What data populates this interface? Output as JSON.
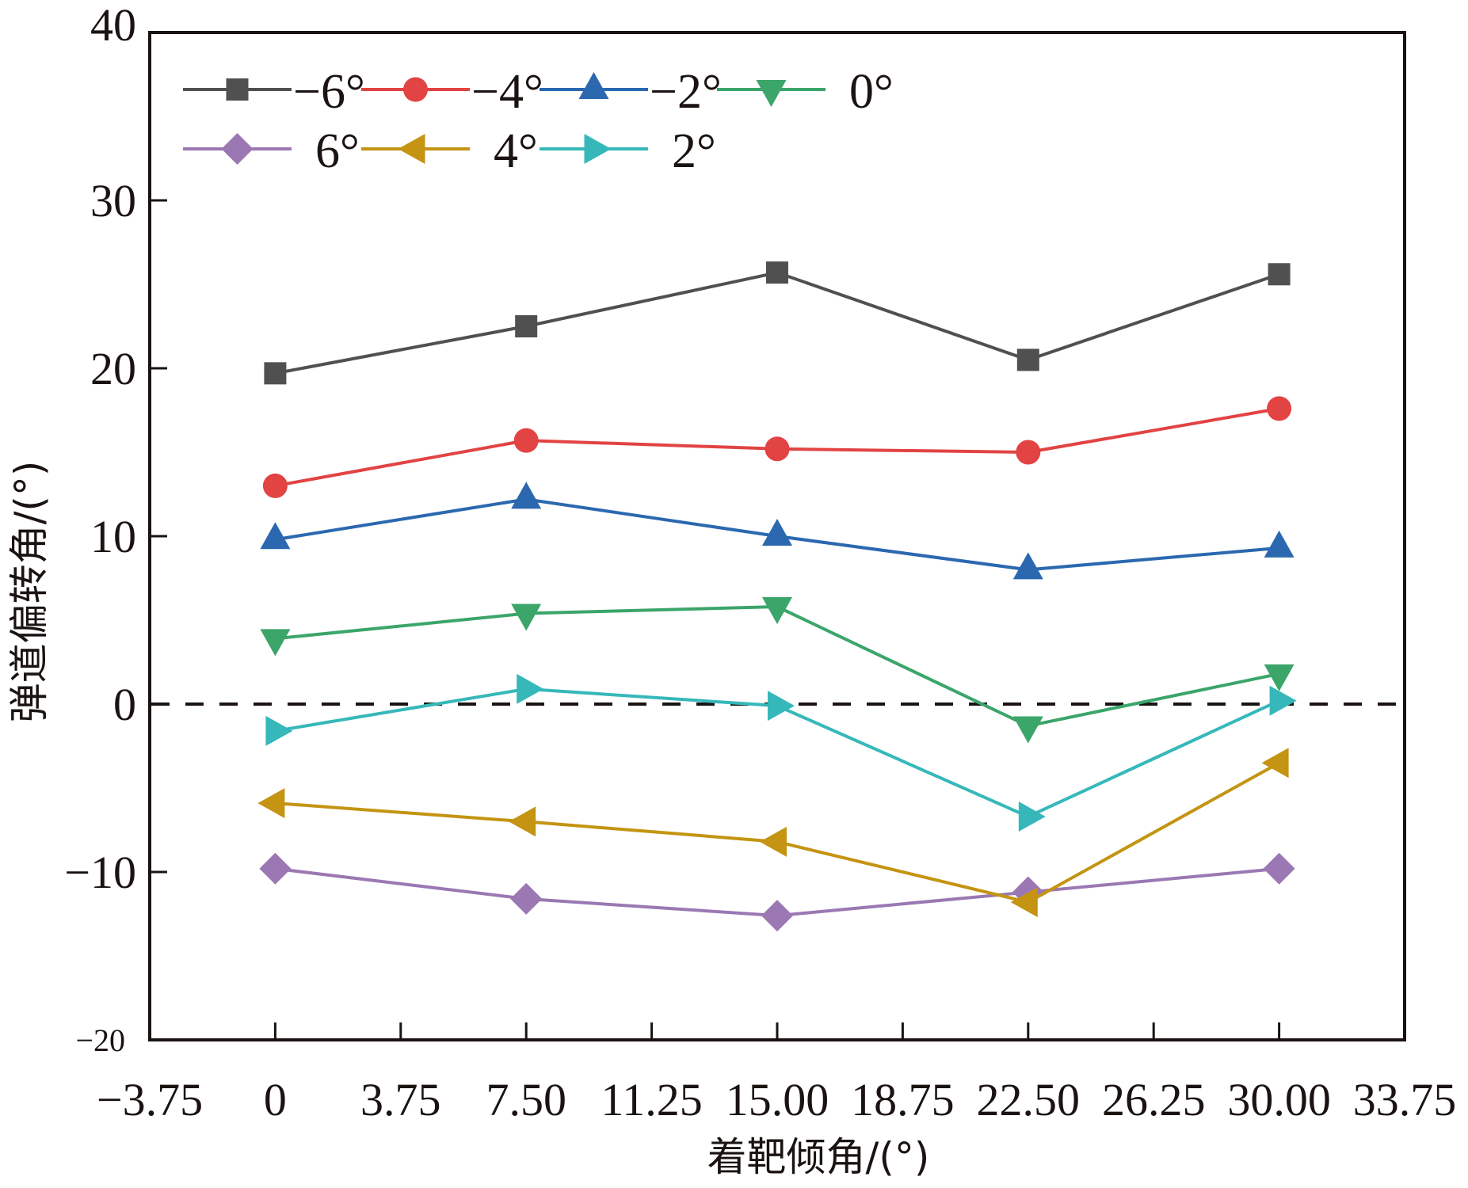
{
  "chart_data": {
    "type": "line",
    "title": "",
    "xlabel": "着靶倾角/(°)",
    "ylabel": "弹道偏转角/(°)",
    "xlim": [
      -3.75,
      33.75
    ],
    "ylim": [
      -20,
      40
    ],
    "xticks": [
      -3.75,
      0,
      3.75,
      7.5,
      11.25,
      15,
      18.75,
      22.5,
      26.25,
      30,
      33.75
    ],
    "xtick_labels": [
      "−3.75",
      "0",
      "3.75",
      "7.50",
      "11.25",
      "15.00",
      "18.75",
      "22.50",
      "26.25",
      "30.00",
      "33.75"
    ],
    "yticks": [
      -20,
      -10,
      0,
      10,
      20,
      30,
      40
    ],
    "ytick_labels": [
      "−20",
      "−10",
      "0",
      "10",
      "20",
      "30",
      "40"
    ],
    "grid": false,
    "reference_line": {
      "y": 0,
      "style": "dashed",
      "color": "#1a1311"
    },
    "legend_position": "top-left",
    "x": [
      0,
      7.5,
      15,
      22.5,
      30
    ],
    "series": [
      {
        "name": "−6°",
        "marker": "square",
        "color": "#505050",
        "values": [
          19.7,
          22.5,
          25.7,
          20.5,
          25.6
        ]
      },
      {
        "name": "−4°",
        "marker": "circle",
        "color": "#E24343",
        "values": [
          13.0,
          15.7,
          15.2,
          15.0,
          17.6
        ]
      },
      {
        "name": "−2°",
        "marker": "triangle-up",
        "color": "#2B68B0",
        "values": [
          9.8,
          12.2,
          10.0,
          8.0,
          9.3
        ]
      },
      {
        "name": "0°",
        "marker": "triangle-down",
        "color": "#3BA56A",
        "values": [
          3.9,
          5.4,
          5.8,
          -1.3,
          1.8
        ]
      },
      {
        "name": "6°",
        "marker": "diamond",
        "color": "#9B78B3",
        "values": [
          -9.8,
          -11.6,
          -12.6,
          -11.2,
          -9.8
        ]
      },
      {
        "name": "4°",
        "marker": "triangle-left",
        "color": "#C49412",
        "values": [
          -5.9,
          -7.0,
          -8.2,
          -11.8,
          -3.5
        ]
      },
      {
        "name": "2°",
        "marker": "triangle-right",
        "color": "#36B8BA",
        "values": [
          -1.6,
          0.9,
          -0.1,
          -6.7,
          0.2
        ]
      }
    ]
  }
}
